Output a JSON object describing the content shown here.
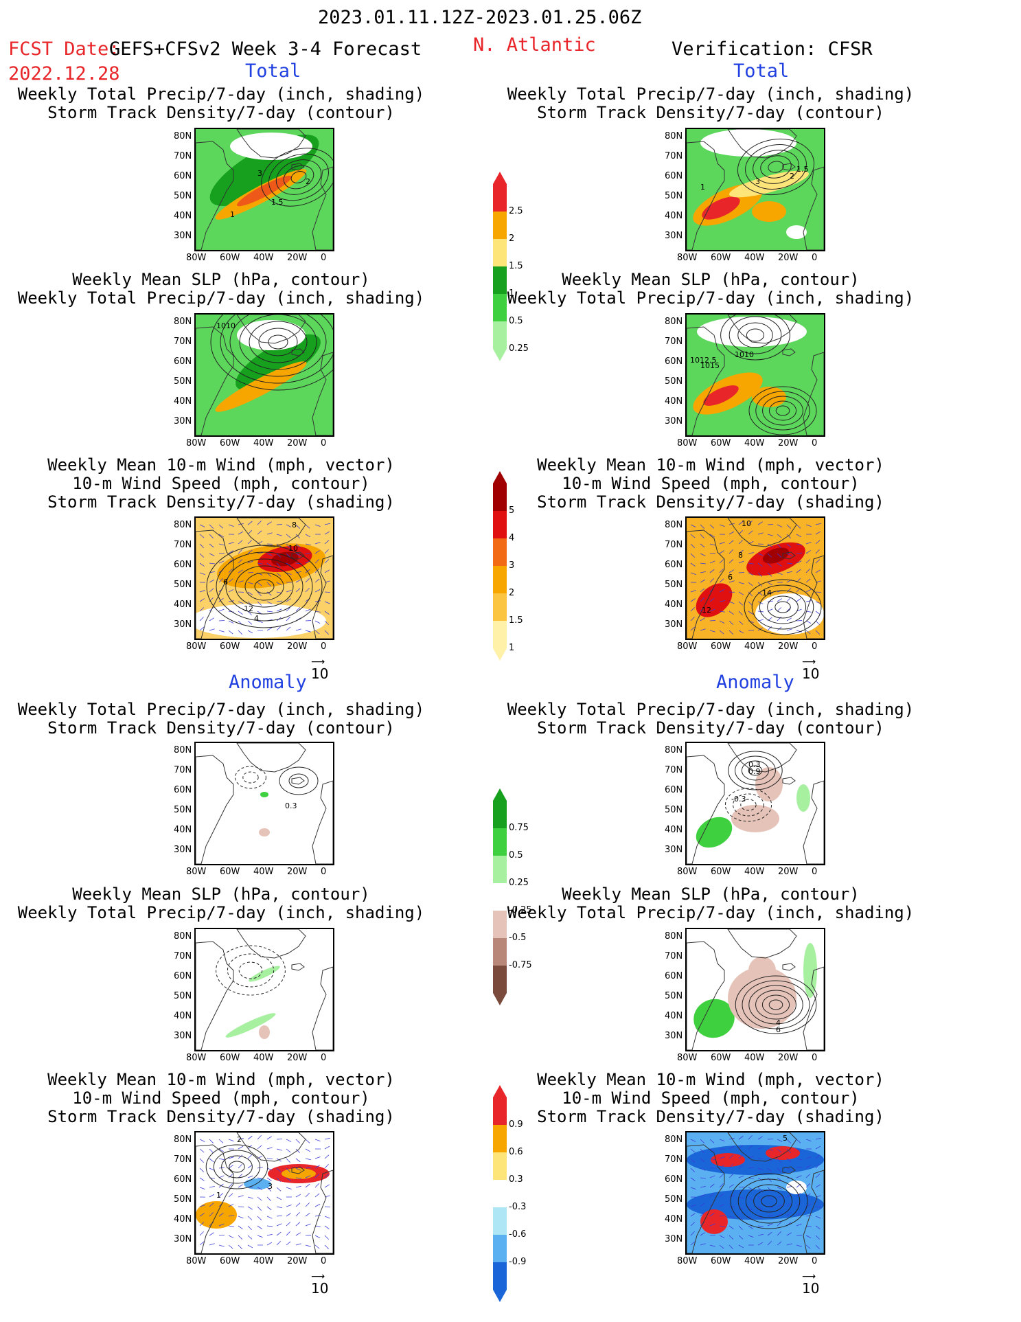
{
  "header": {
    "period": "2023.01.11.12Z-2023.01.25.06Z",
    "fcst_label": "FCST Date:",
    "model": "GEFS+CFSv2 Week 3-4 Forecast",
    "region": "N. Atlantic",
    "fcst_date": "2022.12.28",
    "verification": "Verification: CFSR"
  },
  "sections": {
    "total": "Total",
    "anomaly": "Anomaly"
  },
  "titles": {
    "precip_track": [
      "Weekly Total Precip/7-day (inch, shading)",
      "Storm Track Density/7-day (contour)"
    ],
    "slp_precip": [
      "Weekly Mean SLP (hPa, contour)",
      "Weekly Total Precip/7-day (inch, shading)"
    ],
    "wind_track": [
      "Weekly Mean 10-m Wind (mph, vector)",
      "10-m Wind Speed (mph, contour)",
      "Storm Track Density/7-day (shading)"
    ]
  },
  "axes": {
    "lat": [
      "80N",
      "70N",
      "60N",
      "50N",
      "40N",
      "30N"
    ],
    "lon": [
      "80W",
      "60W",
      "40W",
      "20W",
      "0"
    ]
  },
  "vector_ref": "10",
  "colorbars": {
    "precip_total": {
      "labels": [
        "2.5",
        "2",
        "1.5",
        "1",
        "0.5",
        "0.25"
      ],
      "colors": [
        "#e8262a",
        "#f7a600",
        "#fde57a",
        "#16a01e",
        "#3fd03f",
        "#a7f0a0"
      ]
    },
    "track_total": {
      "labels": [
        "5",
        "4",
        "3",
        "2",
        "1.5",
        "1"
      ],
      "colors": [
        "#a00000",
        "#e01010",
        "#f26a14",
        "#f7a600",
        "#fbc542",
        "#fff2a8"
      ]
    },
    "precip_anom": {
      "labels": [
        "0.75",
        "0.5",
        "0.25",
        "-0.25",
        "-0.5",
        "-0.75"
      ],
      "colors": [
        "#16a01e",
        "#3fd03f",
        "#a7f0a0",
        "#ffffff",
        "#e6c3b8",
        "#b9877a",
        "#7a4a3c"
      ]
    },
    "track_anom": {
      "labels": [
        "0.9",
        "0.6",
        "0.3",
        "-0.3",
        "-0.6",
        "-0.9"
      ],
      "colors": [
        "#e8262a",
        "#f7a600",
        "#fde57a",
        "#ffffff",
        "#aee6f6",
        "#5ab0f0",
        "#1a66d8"
      ]
    }
  },
  "panel_labels": {
    "p1": [
      "3",
      "2",
      "1.5",
      "1"
    ],
    "p2": [
      "1.5",
      "2",
      "3",
      "1"
    ],
    "p3": [
      "1010"
    ],
    "p4": [
      "1010",
      "1012.5",
      "1015"
    ],
    "p5": [
      "10",
      "12",
      "4",
      "6",
      "8"
    ],
    "p6": [
      "10",
      "8",
      "6",
      "12",
      "14"
    ],
    "p7": [
      "0.3"
    ],
    "p8": [
      "0.3",
      "0.9",
      "-0.3"
    ],
    "p10": [
      "4",
      "6"
    ],
    "p11": [
      "2",
      "3",
      "1"
    ],
    "p12": [
      "5"
    ]
  }
}
